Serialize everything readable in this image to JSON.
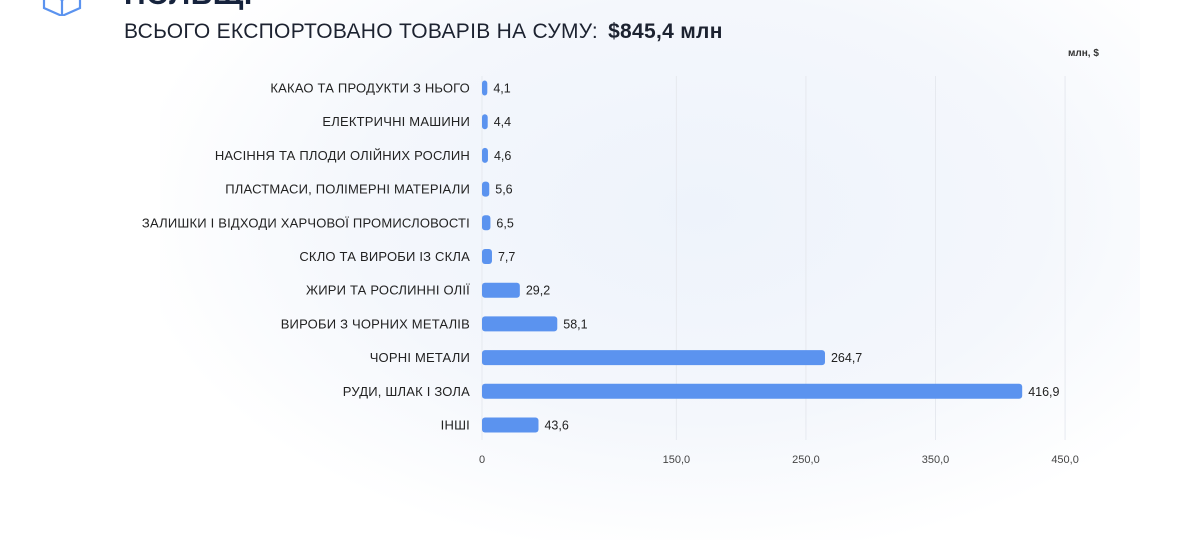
{
  "header": {
    "title_fragment": "ПОЛЬЩІ",
    "subtitle": "ВСЬОГО ЕКСПОРТОВАНО ТОВАРІВ НА СУМУ:",
    "total": "$845,4 млн",
    "accent_color": "#5b93ef",
    "logo_icon": "box-icon"
  },
  "chart_data": {
    "type": "bar",
    "orientation": "horizontal",
    "unit_label": "млн, $",
    "categories": [
      "КАКАО ТА ПРОДУКТИ З НЬОГО",
      "ЕЛЕКТРИЧНІ МАШИНИ",
      "НАСІННЯ ТА ПЛОДИ ОЛІЙНИХ РОСЛИН",
      "ПЛАСТМАСИ, ПОЛІМЕРНІ МАТЕРІАЛИ",
      "ЗАЛИШКИ І ВІДХОДИ ХАРЧОВОЇ ПРОМИСЛОВОСТІ",
      "СКЛО ТА ВИРОБИ ІЗ СКЛА",
      "ЖИРИ ТА РОСЛИННІ ОЛІЇ",
      "ВИРОБИ З ЧОРНИХ МЕТАЛІВ",
      "ЧОРНІ МЕТАЛИ",
      "РУДИ, ШЛАК І ЗОЛА",
      "ІНШІ"
    ],
    "values": [
      4.1,
      4.4,
      4.6,
      5.6,
      6.5,
      7.7,
      29.2,
      58.1,
      264.7,
      416.9,
      43.6
    ],
    "value_labels": [
      "4,1",
      "4,4",
      "4,6",
      "5,6",
      "6,5",
      "7,7",
      "29,2",
      "58,1",
      "264,7",
      "416,9",
      "43,6"
    ],
    "xlim": [
      0,
      470
    ],
    "x_ticks": [
      0,
      150,
      250,
      350,
      450
    ],
    "x_tick_labels": [
      "0",
      "150,0",
      "250,0",
      "350,0",
      "450,0"
    ],
    "grid": true,
    "bar_color": "#5b93ef",
    "grid_color": "#e6e9ef"
  }
}
